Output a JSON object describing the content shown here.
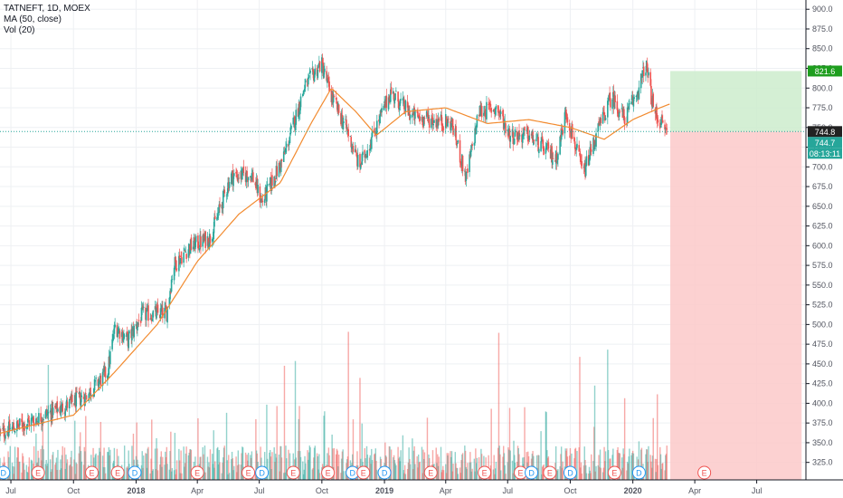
{
  "legend": {
    "symbol": "TATNEFT, 1D, MOEX",
    "ma": "MA (50, close)",
    "vol": "Vol (20)"
  },
  "colors": {
    "up": "#26a69a",
    "down": "#ef5350",
    "ma": "#f28b30",
    "profit_zone": "#cdeccd",
    "loss_zone": "#fcc9c9",
    "target_badge": "#1e9e1e",
    "price_badge": "#222222",
    "info_badge": "#26a69a",
    "grid": "#eef0f3",
    "axis_text": "#50535e"
  },
  "chart_data": {
    "type": "candlestick",
    "symbol": "TATNEFT",
    "interval": "1D",
    "exchange": "MOEX",
    "indicators": [
      "MA (50, close)",
      "Vol (20)"
    ],
    "y_ticks": [
      325,
      350,
      375,
      400,
      425,
      450,
      475,
      500,
      525,
      550,
      575,
      600,
      625,
      650,
      675,
      700,
      725,
      750,
      775,
      800,
      825,
      850,
      875,
      900
    ],
    "y_tick_labels": [
      "325.0",
      "350.0",
      "375.0",
      "400.0",
      "425.0",
      "450.0",
      "475.0",
      "500.0",
      "525.0",
      "550.0",
      "575.0",
      "600.0",
      "625.0",
      "650.0",
      "675.0",
      "700.0",
      "725.0",
      "750.0",
      "775.0",
      "800.0",
      "825.0",
      "850.0",
      "875.0",
      "900.0"
    ],
    "ylim": [
      312,
      906
    ],
    "x_labels": [
      {
        "label": "Jul",
        "date": "2017-07-01",
        "bold": false
      },
      {
        "label": "Oct",
        "date": "2017-10-01",
        "bold": false
      },
      {
        "label": "2018",
        "date": "2018-01-01",
        "bold": true
      },
      {
        "label": "Apr",
        "date": "2018-04-01",
        "bold": false
      },
      {
        "label": "Jul",
        "date": "2018-07-01",
        "bold": false
      },
      {
        "label": "Oct",
        "date": "2018-10-01",
        "bold": false
      },
      {
        "label": "2019",
        "date": "2019-01-01",
        "bold": true
      },
      {
        "label": "Apr",
        "date": "2019-04-01",
        "bold": false
      },
      {
        "label": "Jul",
        "date": "2019-07-01",
        "bold": false
      },
      {
        "label": "Oct",
        "date": "2019-10-01",
        "bold": false
      },
      {
        "label": "2020",
        "date": "2020-01-01",
        "bold": true
      },
      {
        "label": "Apr",
        "date": "2020-04-01",
        "bold": false
      },
      {
        "label": "Jul",
        "date": "2020-07-01",
        "bold": false
      }
    ],
    "xlim": [
      "2017-06-15",
      "2020-09-10"
    ],
    "price_path": [
      {
        "date": "2017-06-15",
        "close": 362
      },
      {
        "date": "2017-08-01",
        "close": 378
      },
      {
        "date": "2017-09-15",
        "close": 395
      },
      {
        "date": "2017-10-20",
        "close": 410
      },
      {
        "date": "2017-11-20",
        "close": 440
      },
      {
        "date": "2017-12-01",
        "close": 498
      },
      {
        "date": "2017-12-20",
        "close": 480
      },
      {
        "date": "2018-01-10",
        "close": 512
      },
      {
        "date": "2018-02-15",
        "close": 515
      },
      {
        "date": "2018-02-25",
        "close": 575
      },
      {
        "date": "2018-03-20",
        "close": 598
      },
      {
        "date": "2018-04-20",
        "close": 610
      },
      {
        "date": "2018-05-20",
        "close": 688
      },
      {
        "date": "2018-06-20",
        "close": 690
      },
      {
        "date": "2018-07-05",
        "close": 655
      },
      {
        "date": "2018-08-05",
        "close": 710
      },
      {
        "date": "2018-09-05",
        "close": 800
      },
      {
        "date": "2018-09-30",
        "close": 832
      },
      {
        "date": "2018-10-15",
        "close": 790
      },
      {
        "date": "2018-11-10",
        "close": 740
      },
      {
        "date": "2018-11-25",
        "close": 700
      },
      {
        "date": "2018-12-15",
        "close": 740
      },
      {
        "date": "2019-01-10",
        "close": 795
      },
      {
        "date": "2019-02-10",
        "close": 765
      },
      {
        "date": "2019-03-10",
        "close": 760
      },
      {
        "date": "2019-04-10",
        "close": 755
      },
      {
        "date": "2019-05-01",
        "close": 685
      },
      {
        "date": "2019-05-20",
        "close": 770
      },
      {
        "date": "2019-06-15",
        "close": 775
      },
      {
        "date": "2019-07-05",
        "close": 740
      },
      {
        "date": "2019-08-01",
        "close": 740
      },
      {
        "date": "2019-09-10",
        "close": 710
      },
      {
        "date": "2019-09-25",
        "close": 770
      },
      {
        "date": "2019-10-20",
        "close": 690
      },
      {
        "date": "2019-11-10",
        "close": 745
      },
      {
        "date": "2019-12-01",
        "close": 790
      },
      {
        "date": "2019-12-20",
        "close": 760
      },
      {
        "date": "2020-01-10",
        "close": 800
      },
      {
        "date": "2020-01-20",
        "close": 830
      },
      {
        "date": "2020-02-01",
        "close": 770
      },
      {
        "date": "2020-02-20",
        "close": 745
      }
    ],
    "ma_path": [
      {
        "date": "2017-06-15",
        "value": 362
      },
      {
        "date": "2017-10-01",
        "value": 385
      },
      {
        "date": "2017-12-01",
        "value": 440
      },
      {
        "date": "2018-02-01",
        "value": 500
      },
      {
        "date": "2018-04-01",
        "value": 580
      },
      {
        "date": "2018-06-01",
        "value": 640
      },
      {
        "date": "2018-08-01",
        "value": 680
      },
      {
        "date": "2018-09-15",
        "value": 755
      },
      {
        "date": "2018-10-15",
        "value": 800
      },
      {
        "date": "2018-11-20",
        "value": 770
      },
      {
        "date": "2018-12-20",
        "value": 740
      },
      {
        "date": "2019-02-01",
        "value": 770
      },
      {
        "date": "2019-04-01",
        "value": 775
      },
      {
        "date": "2019-06-01",
        "value": 755
      },
      {
        "date": "2019-08-01",
        "value": 760
      },
      {
        "date": "2019-10-01",
        "value": 750
      },
      {
        "date": "2019-11-20",
        "value": 735
      },
      {
        "date": "2020-01-01",
        "value": 760
      },
      {
        "date": "2020-02-10",
        "value": 775
      },
      {
        "date": "2020-02-25",
        "value": 780
      }
    ],
    "position": {
      "start_date": "2020-02-25",
      "end_date": "2020-09-05",
      "entry": 744.8,
      "target": 821.6,
      "stop": 312
    },
    "last_price_label": "744.8",
    "target_label": "821.6",
    "current_price_label": "744.7",
    "countdown_label": "08:13:11",
    "events": [
      {
        "date": "2017-06-20",
        "type": "D"
      },
      {
        "date": "2017-08-10",
        "type": "E"
      },
      {
        "date": "2017-10-28",
        "type": "E"
      },
      {
        "date": "2017-12-05",
        "type": "E"
      },
      {
        "date": "2017-12-30",
        "type": "D"
      },
      {
        "date": "2018-04-01",
        "type": "E"
      },
      {
        "date": "2018-06-15",
        "type": "E"
      },
      {
        "date": "2018-07-05",
        "type": "D"
      },
      {
        "date": "2018-08-20",
        "type": "E"
      },
      {
        "date": "2018-10-10",
        "type": "E"
      },
      {
        "date": "2018-11-15",
        "type": "D"
      },
      {
        "date": "2018-12-01",
        "type": "E"
      },
      {
        "date": "2019-01-01",
        "type": "D"
      },
      {
        "date": "2019-03-10",
        "type": "E"
      },
      {
        "date": "2019-05-28",
        "type": "E"
      },
      {
        "date": "2019-07-20",
        "type": "E"
      },
      {
        "date": "2019-08-05",
        "type": "D"
      },
      {
        "date": "2019-09-01",
        "type": "E"
      },
      {
        "date": "2019-10-01",
        "type": "D"
      },
      {
        "date": "2019-12-05",
        "type": "E"
      },
      {
        "date": "2020-01-10",
        "type": "D"
      },
      {
        "date": "2020-04-15",
        "type": "E"
      }
    ]
  }
}
